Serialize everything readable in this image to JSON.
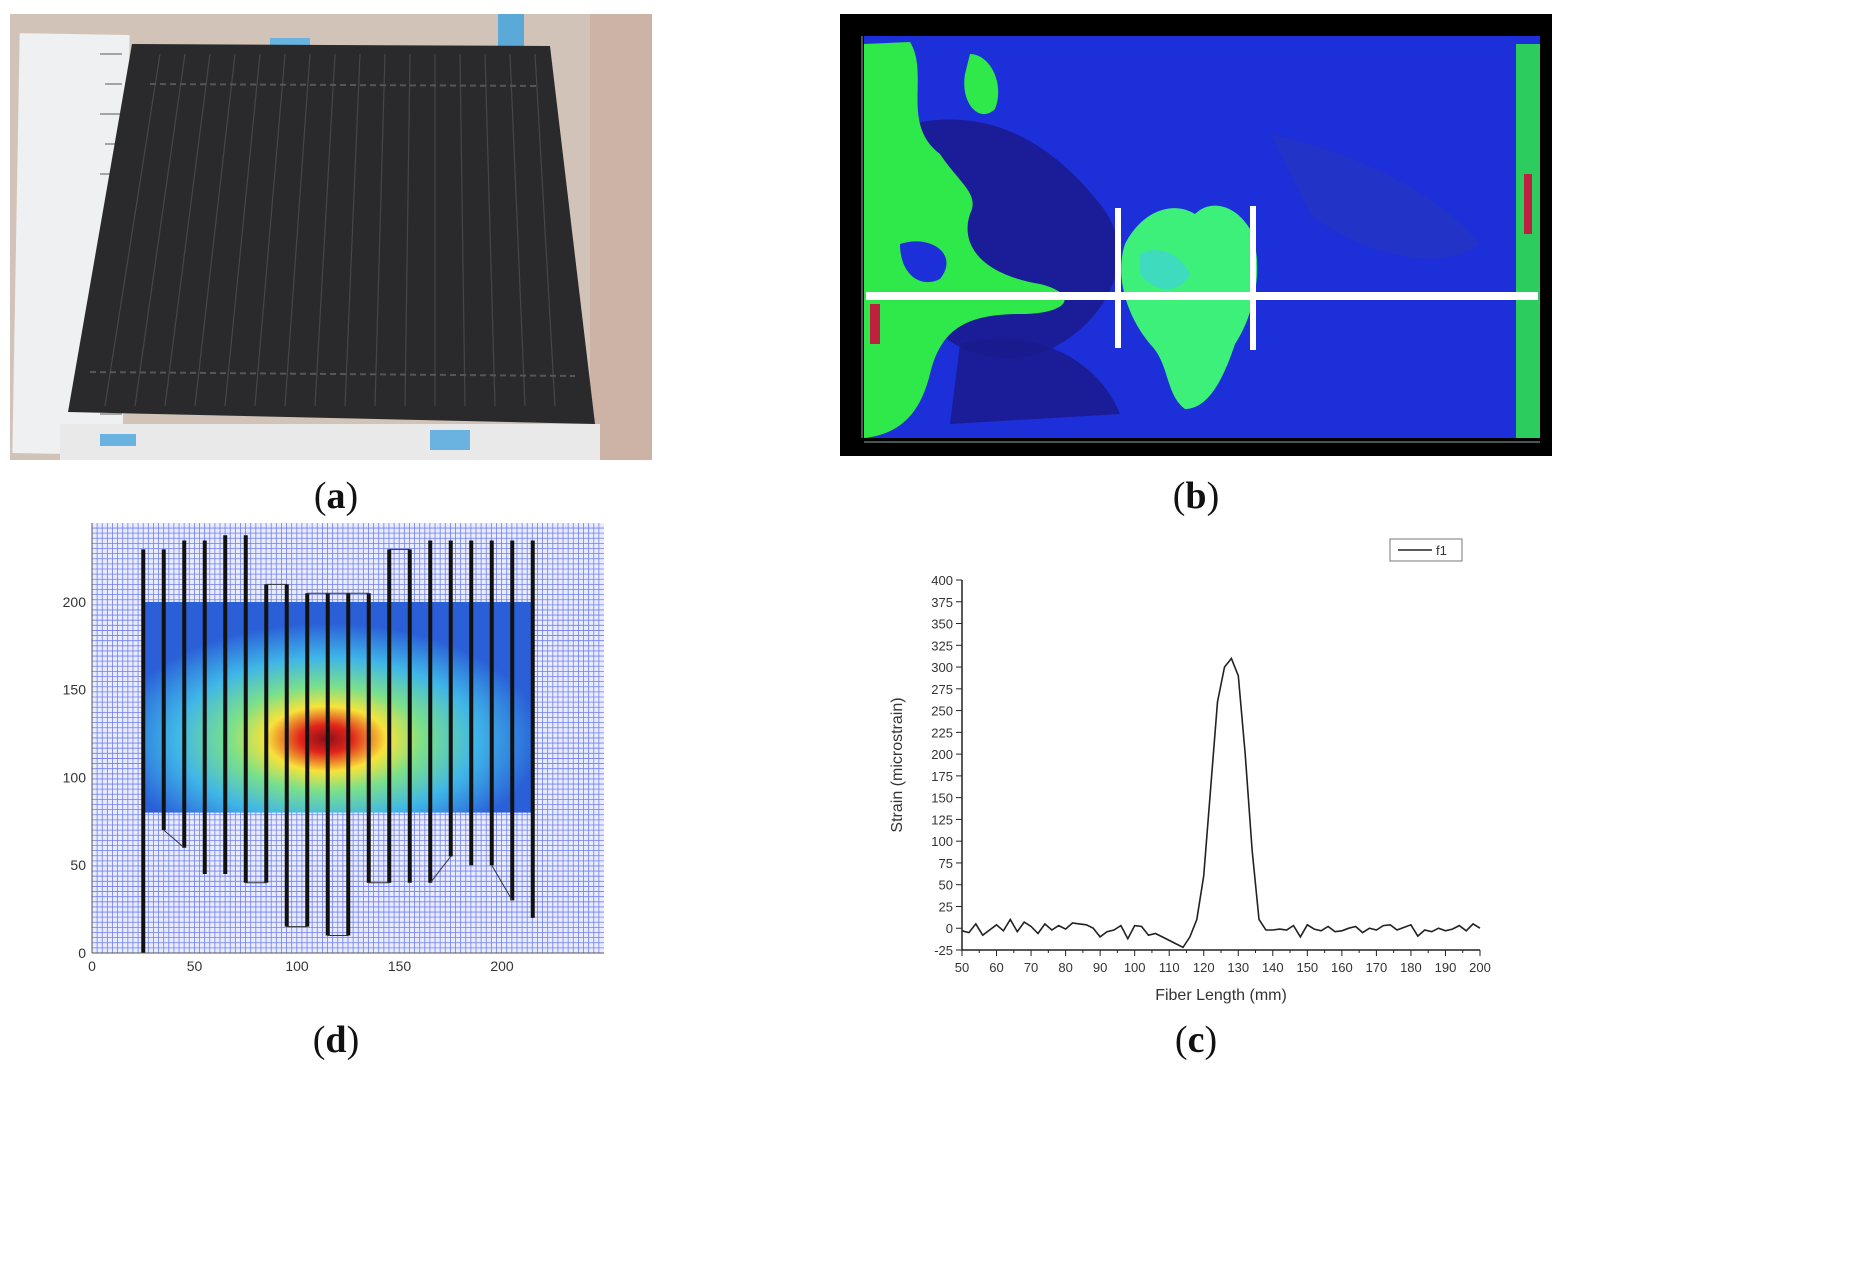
{
  "figure": {
    "panels": [
      {
        "id": "a",
        "caption": "a",
        "kind": "photo"
      },
      {
        "id": "b",
        "caption": "b",
        "kind": "strain-map"
      },
      {
        "id": "d",
        "caption": "d",
        "kind": "fiber-grid-map"
      },
      {
        "id": "c",
        "caption": "c",
        "kind": "line-chart"
      }
    ]
  },
  "colors": {
    "map_blue": "#1a2dd6",
    "map_dark_blue": "#1a1a8c",
    "map_green": "#2fe84a",
    "grid_blue": "#6f7ff0",
    "fiber_black": "#111111",
    "line": "#222222"
  },
  "panel_d": {
    "x_ticks": [
      "0",
      "50",
      "100",
      "150",
      "200"
    ],
    "y_ticks": [
      "0",
      "50",
      "100",
      "150",
      "200"
    ]
  },
  "chart_data": {
    "type": "line",
    "xlabel": "Fiber Length (mm)",
    "ylabel": "Strain (microstrain)",
    "legend": "f1",
    "legend_position": "top-right",
    "grid": false,
    "xlim": [
      50,
      200
    ],
    "ylim": [
      -25,
      400
    ],
    "x_ticks": [
      50,
      60,
      70,
      80,
      90,
      100,
      110,
      120,
      130,
      140,
      150,
      160,
      170,
      180,
      190,
      200
    ],
    "y_ticks": [
      -25,
      0,
      25,
      50,
      75,
      100,
      125,
      150,
      175,
      200,
      225,
      250,
      275,
      300,
      325,
      350,
      375,
      400
    ],
    "series": [
      {
        "name": "f1",
        "x": [
          50,
          52,
          54,
          56,
          58,
          60,
          62,
          64,
          66,
          68,
          70,
          72,
          74,
          76,
          78,
          80,
          82,
          84,
          86,
          88,
          90,
          92,
          94,
          96,
          98,
          100,
          102,
          104,
          106,
          108,
          110,
          112,
          114,
          116,
          118,
          120,
          122,
          124,
          126,
          128,
          130,
          132,
          134,
          136,
          138,
          140,
          142,
          144,
          146,
          148,
          150,
          152,
          154,
          156,
          158,
          160,
          162,
          164,
          166,
          168,
          170,
          172,
          174,
          176,
          178,
          180,
          182,
          184,
          186,
          188,
          190,
          192,
          194,
          196,
          198,
          200
        ],
        "y": [
          -3,
          -5,
          5,
          -8,
          -2,
          4,
          -3,
          10,
          -4,
          7,
          2,
          -6,
          5,
          -2,
          3,
          -1,
          6,
          5,
          4,
          0,
          -10,
          -4,
          -2,
          3,
          -12,
          3,
          2,
          -8,
          -6,
          -10,
          -14,
          -18,
          -22,
          -10,
          10,
          60,
          160,
          260,
          300,
          310,
          290,
          200,
          90,
          10,
          -2,
          -2,
          -1,
          -2,
          3,
          -10,
          4,
          -1,
          -3,
          2,
          -4,
          -3,
          0,
          2,
          -5,
          0,
          -2,
          3,
          4,
          -2,
          1,
          4,
          -9,
          -2,
          -4,
          0,
          -3,
          -1,
          3,
          -3,
          5,
          0
        ]
      }
    ]
  }
}
